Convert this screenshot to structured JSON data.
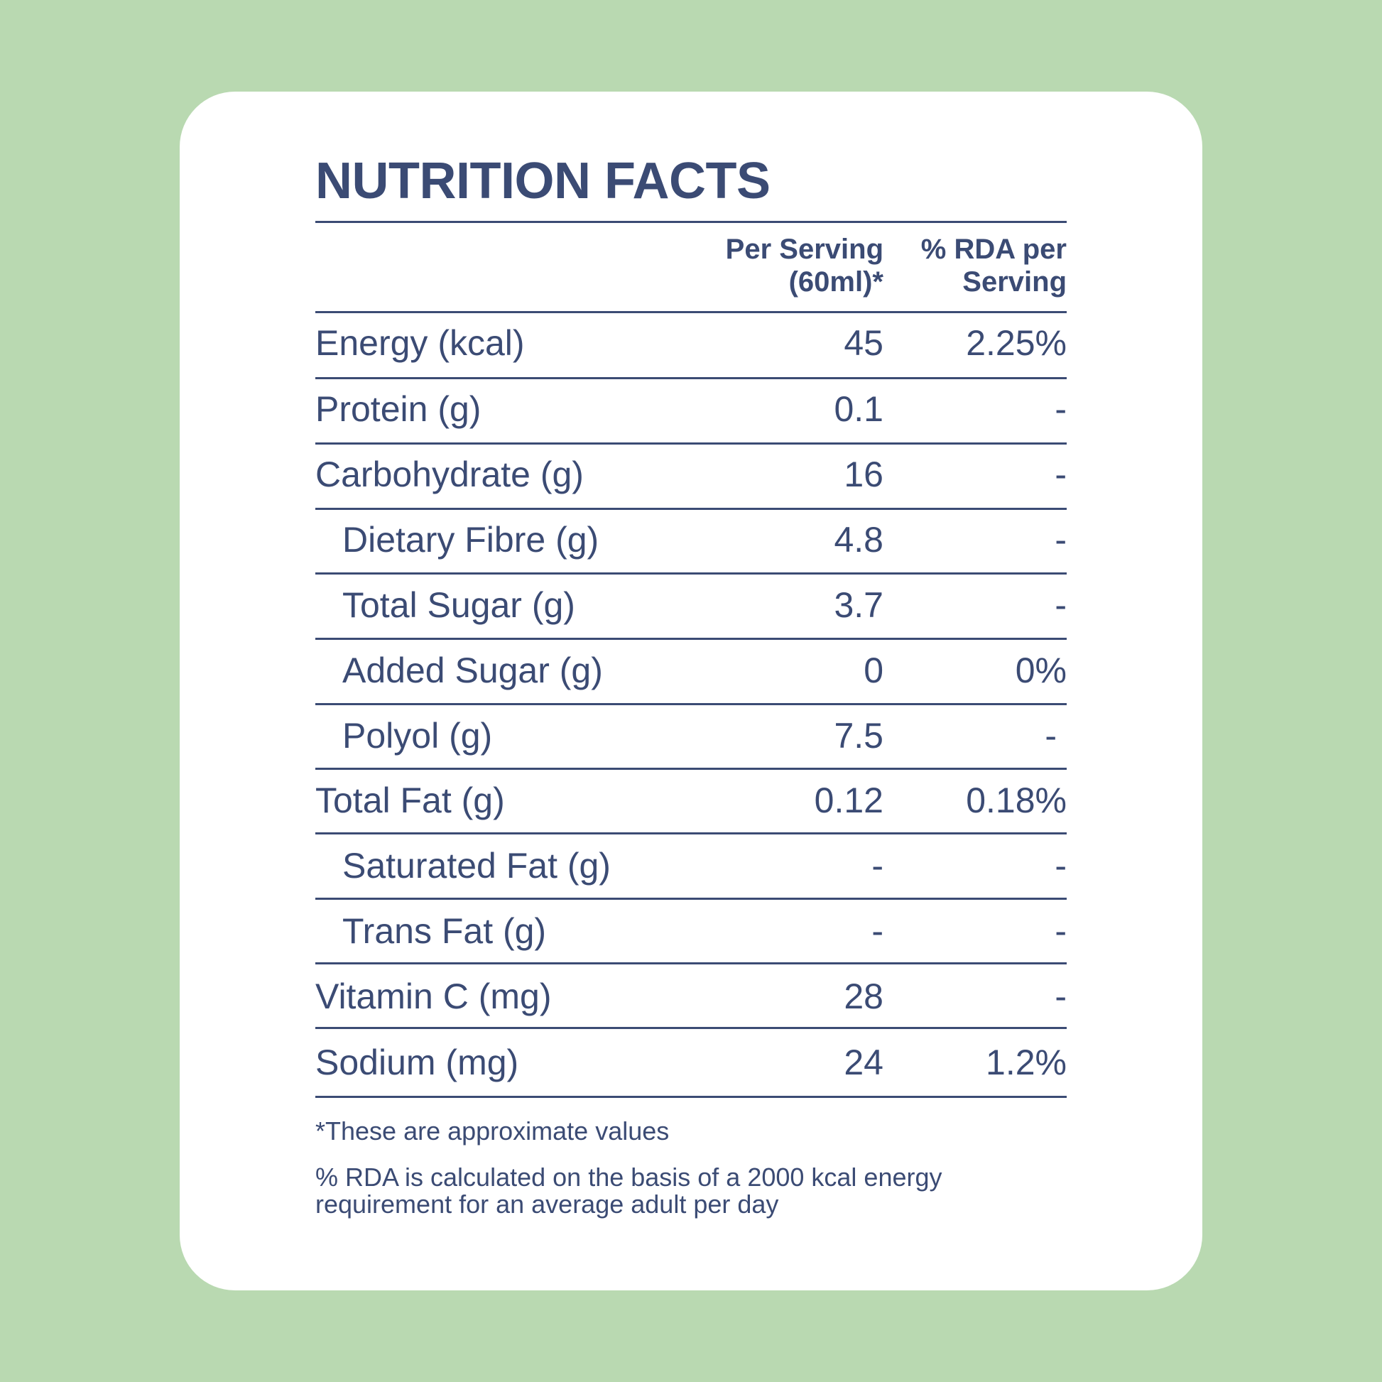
{
  "title": "NUTRITION FACTS",
  "header": {
    "per_serving_line1": "Per Serving",
    "per_serving_line2": "(60ml)*",
    "rda_line1": "% RDA per",
    "rda_line2": "Serving"
  },
  "rows": [
    {
      "label": "Energy (kcal)",
      "value": "45",
      "rda": "2.25%"
    },
    {
      "label": "Protein (g)",
      "value": "0.1",
      "rda": "-"
    },
    {
      "label": "Carbohydrate (g)",
      "value": "16",
      "rda": "-"
    },
    {
      "label": "Dietary Fibre (g)",
      "value": "4.8",
      "rda": "-"
    },
    {
      "label": "Total Sugar (g)",
      "value": "3.7",
      "rda": "-"
    },
    {
      "label": "Added Sugar (g)",
      "value": "0",
      "rda": "0%"
    },
    {
      "label": "Polyol (g)",
      "value": "7.5",
      "rda": "-"
    },
    {
      "label": "Total Fat (g)",
      "value": "0.12",
      "rda": "0.18%"
    },
    {
      "label": "Saturated Fat (g)",
      "value": "-",
      "rda": "-"
    },
    {
      "label": "Trans Fat (g)",
      "value": "-",
      "rda": "-"
    },
    {
      "label": "Vitamin C (mg)",
      "value": "28",
      "rda": "-"
    },
    {
      "label": "Sodium (mg)",
      "value": "24",
      "rda": "1.2%"
    }
  ],
  "footnotes": {
    "approx": "*These are approximate values",
    "rda_line1": "%  RDA is calculated on the basis of a 2000 kcal energy",
    "rda_line2": "requirement for an average adult per day"
  },
  "colors": {
    "background": "#b9d9b1",
    "card": "#ffffff",
    "text": "#3b4b74"
  }
}
